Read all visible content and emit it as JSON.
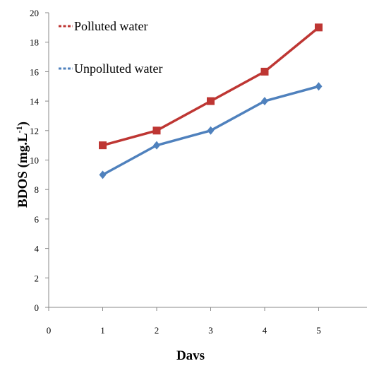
{
  "chart_data": {
    "type": "line",
    "xlabel": "Davs",
    "ylabel": "BDOS (mg.L",
    "ylabel_sup": "-1",
    "ylabel_close": ")",
    "xlim": [
      0,
      6
    ],
    "ylim": [
      0,
      20
    ],
    "x_ticks": [
      "0",
      "1",
      "2",
      "3",
      "4",
      "5"
    ],
    "y_ticks": [
      "0",
      "2",
      "4",
      "6",
      "8",
      "10",
      "12",
      "14",
      "16",
      "18",
      "20"
    ],
    "grid": false,
    "legend_position": "top-left",
    "series": [
      {
        "name": "Polluted water",
        "color": "#be3633",
        "marker": "square",
        "x": [
          1,
          2,
          3,
          4,
          5
        ],
        "values": [
          11,
          12,
          14,
          16,
          19
        ]
      },
      {
        "name": "Unpolluted water",
        "color": "#4f81bd",
        "marker": "diamond",
        "x": [
          1,
          2,
          3,
          4,
          5
        ],
        "values": [
          9,
          11,
          12,
          14,
          15
        ]
      }
    ]
  }
}
